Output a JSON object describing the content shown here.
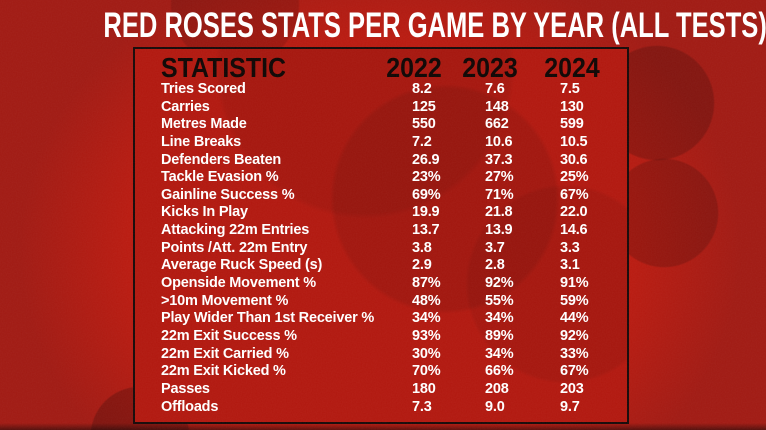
{
  "title": "RED ROSES STATS PER GAME BY YEAR (ALL TESTS)",
  "colors": {
    "background": "#a01912",
    "panel": "#b1170e",
    "border": "#160908",
    "title_text": "#ffffff",
    "header_text": "#0d0503",
    "row_text": "#ffffff"
  },
  "chart_data": {
    "type": "table",
    "title": "RED ROSES STATS PER GAME BY YEAR (ALL TESTS)",
    "columns": [
      "STATISTIC",
      "2022",
      "2023",
      "2024"
    ],
    "rows": [
      [
        "Tries Scored",
        "8.2",
        "7.6",
        "7.5"
      ],
      [
        "Carries",
        "125",
        "148",
        "130"
      ],
      [
        "Metres Made",
        "550",
        "662",
        "599"
      ],
      [
        "Line Breaks",
        "7.2",
        "10.6",
        "10.5"
      ],
      [
        "Defenders Beaten",
        "26.9",
        "37.3",
        "30.6"
      ],
      [
        "Tackle Evasion %",
        "23%",
        "27%",
        "25%"
      ],
      [
        "Gainline Success %",
        "69%",
        "71%",
        "67%"
      ],
      [
        "Kicks In Play",
        "19.9",
        "21.8",
        "22.0"
      ],
      [
        "Attacking 22m Entries",
        "13.7",
        "13.9",
        "14.6"
      ],
      [
        "Points /Att. 22m Entry",
        "3.8",
        "3.7",
        "3.3"
      ],
      [
        "Average Ruck Speed (s)",
        "2.9",
        "2.8",
        "3.1"
      ],
      [
        "Openside Movement %",
        "87%",
        "92%",
        "91%"
      ],
      [
        ">10m Movement %",
        "48%",
        "55%",
        "59%"
      ],
      [
        "Play Wider Than 1st Receiver %",
        "34%",
        "34%",
        "44%"
      ],
      [
        "22m Exit Success %",
        "93%",
        "89%",
        "92%"
      ],
      [
        "22m Exit Carried %",
        "30%",
        "34%",
        "33%"
      ],
      [
        "22m Exit Kicked %",
        "70%",
        "66%",
        "67%"
      ],
      [
        "Passes",
        "180",
        "208",
        "203"
      ],
      [
        "Offloads",
        "7.3",
        "9.0",
        "9.7"
      ]
    ]
  }
}
